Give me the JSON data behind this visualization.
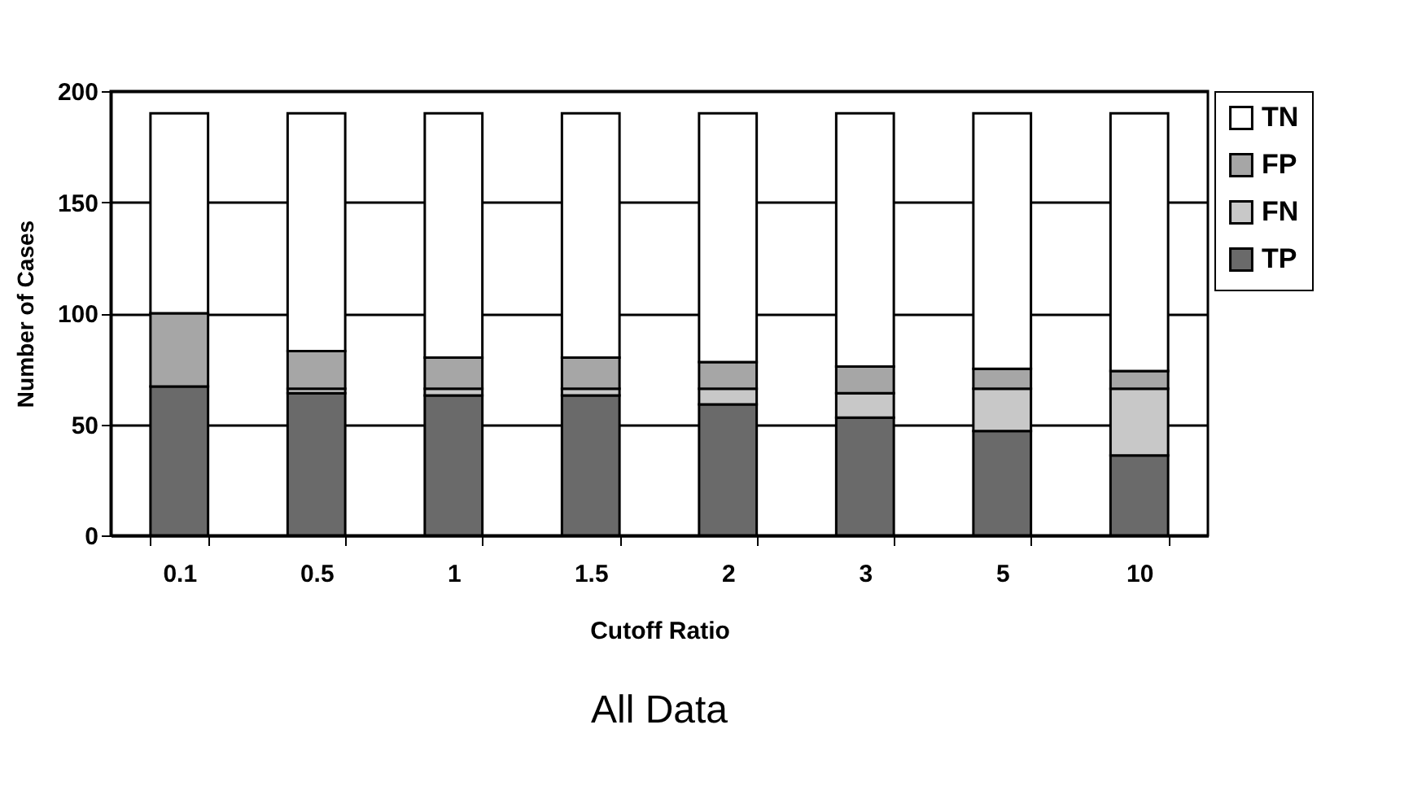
{
  "chart_data": {
    "type": "bar",
    "title": "All Data",
    "xlabel": "Cutoff Ratio",
    "ylabel": "Number of Cases",
    "categories": [
      "0.1",
      "0.5",
      "1",
      "1.5",
      "2",
      "3",
      "5",
      "10"
    ],
    "stacked": true,
    "series": [
      {
        "name": "TP",
        "color": "#6a6a6a",
        "values": [
          67,
          64,
          63,
          63,
          59,
          53,
          47,
          36
        ]
      },
      {
        "name": "FN",
        "color": "#c8c8c8",
        "values": [
          null,
          2,
          3,
          3,
          7,
          11,
          19,
          30
        ]
      },
      {
        "name": "FP",
        "color": "#a6a6a6",
        "values": [
          33,
          17,
          14,
          14,
          12,
          12,
          9,
          8
        ]
      },
      {
        "name": "TN",
        "color": "#ffffff",
        "values": [
          90,
          107,
          110,
          110,
          112,
          114,
          115,
          116
        ]
      }
    ],
    "ylim": [
      0,
      200
    ],
    "yticks": [
      0,
      50,
      100,
      150,
      200
    ],
    "grid": "y",
    "legend": "right"
  }
}
